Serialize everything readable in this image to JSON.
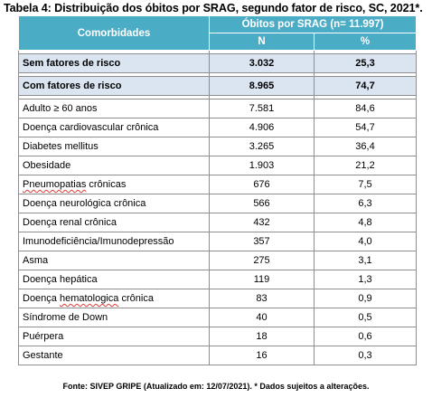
{
  "title": "Tabela 4: Distribuição dos óbitos por SRAG, segundo fator de risco, SC, 2021*.",
  "header": {
    "comorbidades": "Comorbidades",
    "group": "Óbitos por SRAG  (n= 11.997)",
    "n": "N",
    "pct": "%"
  },
  "summary": [
    {
      "label": "Sem fatores de risco",
      "n": "3.032",
      "pct": "25,3"
    },
    {
      "label": "Com fatores de risco",
      "n": "8.965",
      "pct": "74,7"
    }
  ],
  "rows": [
    {
      "label": "Adulto ≥ 60 anos",
      "n": "7.581",
      "pct": "84,6"
    },
    {
      "label": "Doença cardiovascular crônica",
      "n": "4.906",
      "pct": "54,7"
    },
    {
      "label": "Diabetes mellitus",
      "n": "3.265",
      "pct": "36,4"
    },
    {
      "label": "Obesidade",
      "n": "1.903",
      "pct": "21,2"
    },
    {
      "label": "Pneumopatias crônicas",
      "n": "676",
      "pct": "7,5"
    },
    {
      "label": "Doença neurológica crônica",
      "n": "566",
      "pct": "6,3"
    },
    {
      "label": "Doença renal crônica",
      "n": "432",
      "pct": "4,8"
    },
    {
      "label": "Imunodeficiência/Imunodepressão",
      "n": "357",
      "pct": "4,0"
    },
    {
      "label": "Asma",
      "n": "275",
      "pct": "3,1"
    },
    {
      "label": "Doença hepática",
      "n": "119",
      "pct": "1,3"
    },
    {
      "label": "Doença hematologica crônica",
      "n": "83",
      "pct": "0,9"
    },
    {
      "label": "Síndrome de Down",
      "n": "40",
      "pct": "0,5"
    },
    {
      "label": "Puérpera",
      "n": "18",
      "pct": "0,6"
    },
    {
      "label": "Gestante",
      "n": "16",
      "pct": "0,3"
    }
  ],
  "footer": "Fonte: SIVEP GRIPE (Atualizado em: 12/07/2021). * Dados sujeitos a alterações.",
  "colors": {
    "header": "#4bacc6",
    "summary": "#dbe5f1",
    "border": "#8e8e8e"
  }
}
